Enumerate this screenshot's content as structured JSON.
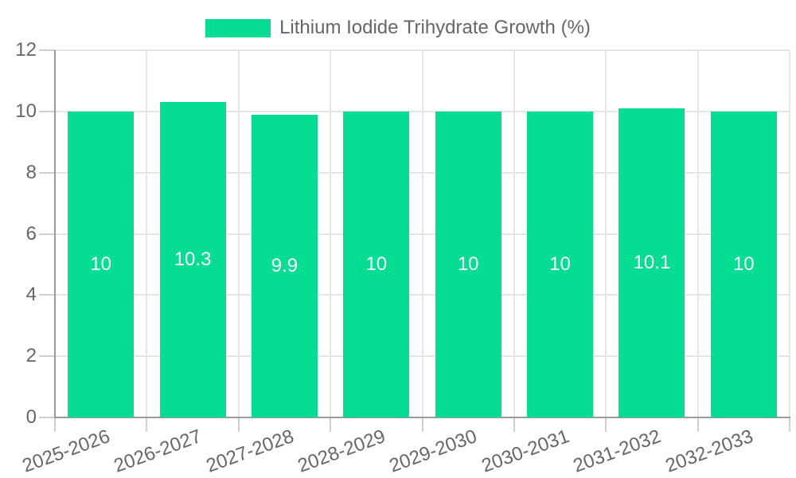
{
  "chart_data": {
    "type": "bar",
    "title": "",
    "legend": "Lithium Iodide Trihydrate Growth (%)",
    "legend_position": "top",
    "categories": [
      "2025-2026",
      "2026-2027",
      "2027-2028",
      "2028-2029",
      "2029-2030",
      "2030-2031",
      "2031-2032",
      "2032-2033"
    ],
    "series": [
      {
        "name": "Lithium Iodide Trihydrate Growth (%)",
        "values": [
          10,
          10.3,
          9.9,
          10,
          10,
          10,
          10.1,
          10
        ],
        "value_labels": [
          "10",
          "10.3",
          "9.9",
          "10",
          "10",
          "10",
          "10.1",
          "10"
        ]
      }
    ],
    "xlabel": "",
    "ylabel": "",
    "ylim": [
      0,
      12
    ],
    "yticks": [
      0,
      2,
      4,
      6,
      8,
      10,
      12
    ],
    "grid": true,
    "colors": {
      "bar": "#05dd92",
      "text": "#666666",
      "grid": "#e5e5e5",
      "axis": "#9b9b9b",
      "tick": "#cfcfcf",
      "value_label": "#ffffff"
    }
  }
}
